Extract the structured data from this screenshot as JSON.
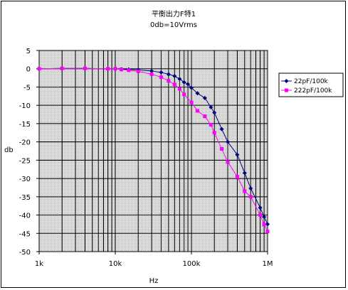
{
  "chart_data": {
    "type": "line",
    "title": "平衡出力F特1",
    "subtitle": "0db=10Vrms",
    "xlabel": "Hz",
    "ylabel": "db",
    "xscale": "log",
    "xlim": [
      1000,
      1000000
    ],
    "ylim": [
      -50,
      5
    ],
    "x_tick_labels": [
      "1k",
      "10k",
      "100k",
      "1M"
    ],
    "x_tick_values": [
      1000,
      10000,
      100000,
      1000000
    ],
    "y_ticks": [
      5,
      0,
      -5,
      -10,
      -15,
      -20,
      -25,
      -30,
      -35,
      -40,
      -45,
      -50
    ],
    "grid": true,
    "legend_position": "right",
    "series": [
      {
        "name": "22pF/100k",
        "color": "#000080",
        "marker": "diamond",
        "points": [
          [
            1000,
            0
          ],
          [
            2000,
            0.1
          ],
          [
            4000,
            0.1
          ],
          [
            8000,
            0
          ],
          [
            10000,
            0
          ],
          [
            12000,
            -0.1
          ],
          [
            15000,
            -0.2
          ],
          [
            20000,
            -0.3
          ],
          [
            30000,
            -0.6
          ],
          [
            40000,
            -1
          ],
          [
            50000,
            -1.5
          ],
          [
            60000,
            -2
          ],
          [
            70000,
            -2.8
          ],
          [
            80000,
            -3.7
          ],
          [
            90000,
            -4.2
          ],
          [
            100000,
            -5.2
          ],
          [
            120000,
            -6.7
          ],
          [
            150000,
            -8
          ],
          [
            180000,
            -10.5
          ],
          [
            200000,
            -12
          ],
          [
            250000,
            -16.5
          ],
          [
            300000,
            -20
          ],
          [
            400000,
            -23.5
          ],
          [
            500000,
            -28.5
          ],
          [
            600000,
            -32.7
          ],
          [
            800000,
            -38
          ],
          [
            900000,
            -40.5
          ],
          [
            1000000,
            -42.5
          ]
        ]
      },
      {
        "name": "222pF/100k",
        "color": "#ff00ff",
        "marker": "square",
        "points": [
          [
            1000,
            0
          ],
          [
            2000,
            0.1
          ],
          [
            4000,
            0.1
          ],
          [
            8000,
            0
          ],
          [
            10000,
            0
          ],
          [
            12000,
            -0.2
          ],
          [
            15000,
            -0.4
          ],
          [
            20000,
            -0.7
          ],
          [
            30000,
            -1.5
          ],
          [
            40000,
            -2.3
          ],
          [
            50000,
            -3.3
          ],
          [
            60000,
            -4.3
          ],
          [
            70000,
            -5.5
          ],
          [
            80000,
            -7
          ],
          [
            100000,
            -9.2
          ],
          [
            120000,
            -11.5
          ],
          [
            150000,
            -13
          ],
          [
            180000,
            -15.3
          ],
          [
            200000,
            -17.5
          ],
          [
            250000,
            -21.9
          ],
          [
            300000,
            -25.5
          ],
          [
            400000,
            -29.5
          ],
          [
            500000,
            -33.5
          ],
          [
            600000,
            -35
          ],
          [
            800000,
            -40
          ],
          [
            900000,
            -42.6
          ],
          [
            1000000,
            -44.5
          ]
        ]
      }
    ]
  }
}
